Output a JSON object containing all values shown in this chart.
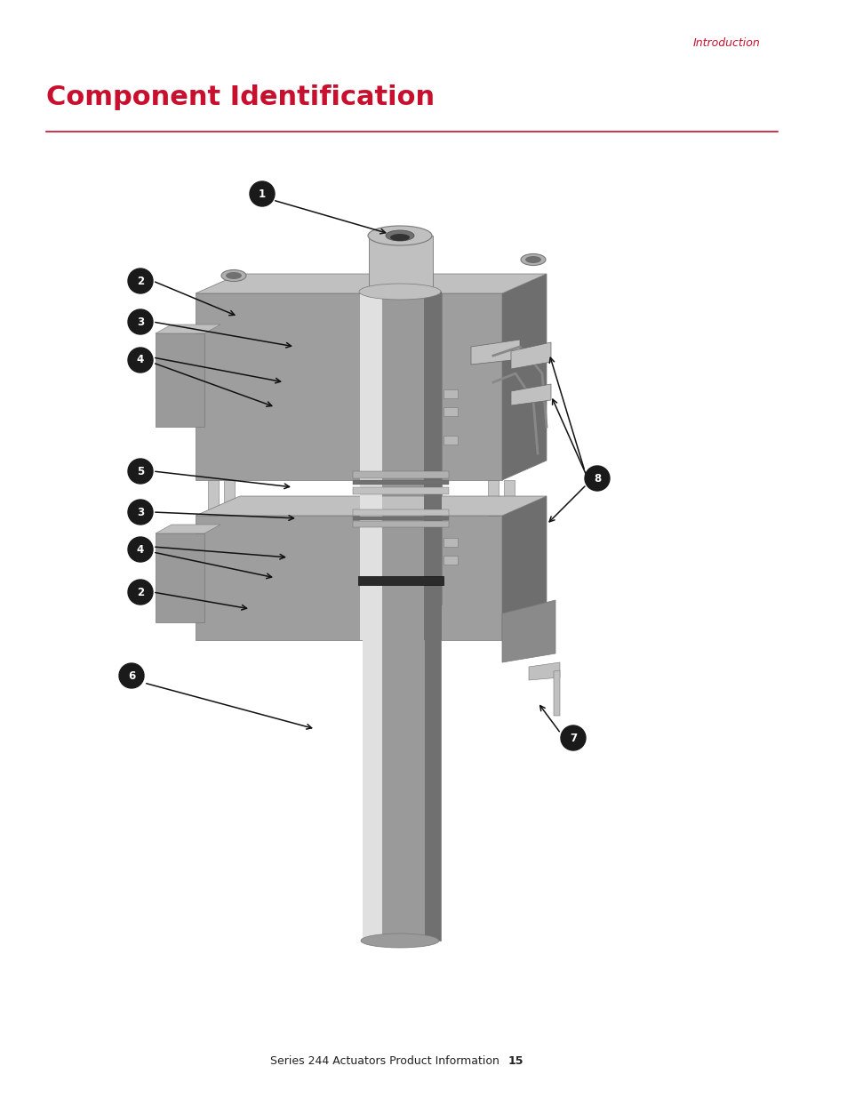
{
  "page_bg": "#ffffff",
  "header_text": "Introduction",
  "header_color": "#c8102e",
  "header_fontsize": 9,
  "title_text": "Component Identification",
  "title_color": "#c8102e",
  "title_fontsize": 22,
  "rule_color": "#c8102e",
  "footer_text": "Series 244 Actuators Product Information",
  "footer_page": "15",
  "footer_fontsize": 9,
  "footer_color": "#222222",
  "callout_bg": "#1a1a1a",
  "callout_fg": "#ffffff",
  "fig_width": 9.54,
  "fig_height": 12.35,
  "dpi": 100,
  "lc": "#c0c0c0",
  "mc": "#9a9a9a",
  "dc": "#707070",
  "bc": "#404040",
  "wc": "#e0e0e0",
  "ec": "#787878"
}
